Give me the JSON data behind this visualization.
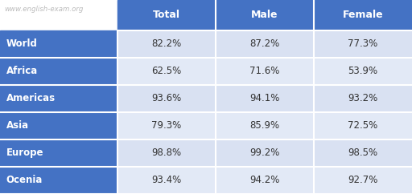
{
  "watermark": "www.english-exam.org",
  "headers": [
    "Total",
    "Male",
    "Female"
  ],
  "rows": [
    {
      "region": "World",
      "values": [
        "82.2%",
        "87.2%",
        "77.3%"
      ]
    },
    {
      "region": "Africa",
      "values": [
        "62.5%",
        "71.6%",
        "53.9%"
      ]
    },
    {
      "region": "Americas",
      "values": [
        "93.6%",
        "94.1%",
        "93.2%"
      ]
    },
    {
      "region": "Asia",
      "values": [
        "79.3%",
        "85.9%",
        "72.5%"
      ]
    },
    {
      "region": "Europe",
      "values": [
        "98.8%",
        "99.2%",
        "98.5%"
      ]
    },
    {
      "region": "Ocenia",
      "values": [
        "93.4%",
        "94.2%",
        "92.7%"
      ]
    }
  ],
  "header_bg": "#4472C4",
  "header_text": "#FFFFFF",
  "row_label_bg": "#4472C4",
  "row_label_text": "#FFFFFF",
  "cell_bg_even": "#D9E1F2",
  "cell_bg_odd": "#E2E9F6",
  "cell_text": "#333333",
  "watermark_color": "#BBBBBB",
  "border_color": "#FFFFFF",
  "fig_bg": "#FFFFFF"
}
